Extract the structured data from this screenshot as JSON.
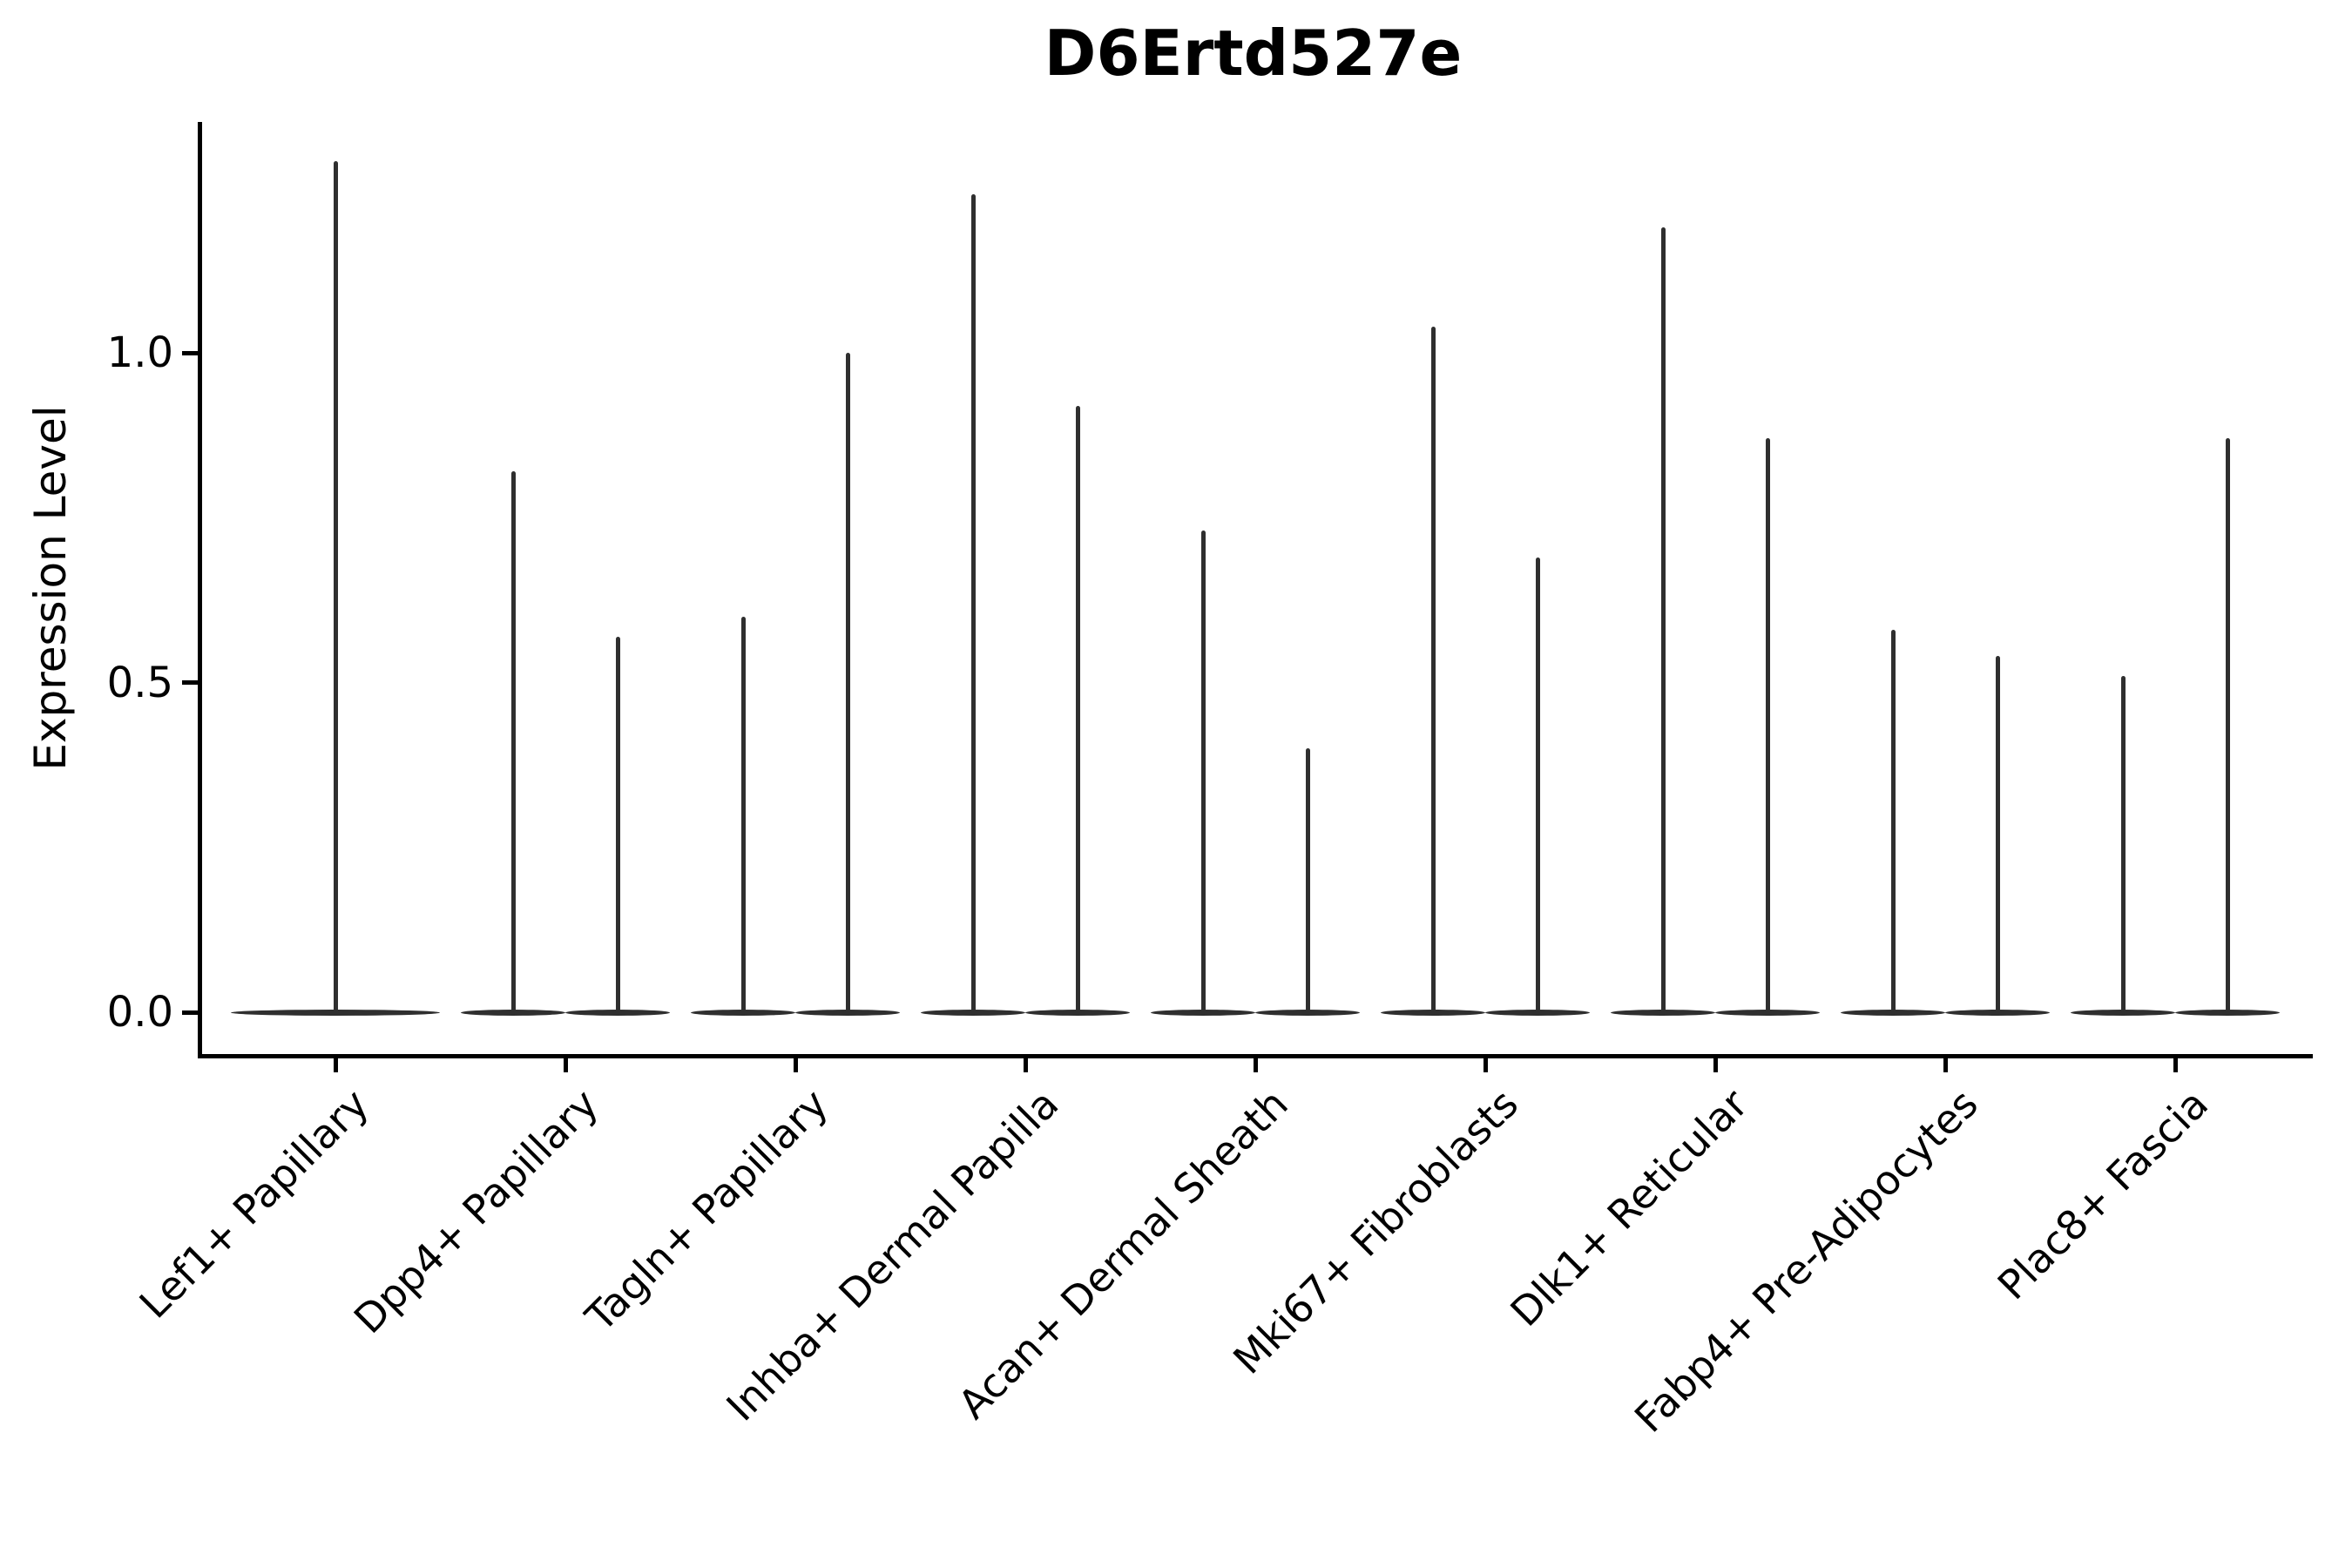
{
  "chart_data": {
    "type": "violin",
    "title": "D6Ertd527e",
    "xlabel": "",
    "ylabel": "Expression Level",
    "ylim": [
      -0.06,
      1.35
    ],
    "yticks": [
      0.0,
      0.5,
      1.0
    ],
    "ytick_labels": [
      "0.0",
      "0.5",
      "1.0"
    ],
    "grid": false,
    "legend": false,
    "baseline_value": 0.0,
    "categories": [
      "Lef1+ Papillary",
      "Dpp4+ Papillary",
      "Tagln+ Papillary",
      "Inhba+ Dermal Papilla",
      "Acan+ Dermal Sheath",
      "Mki67+ Fibroblasts",
      "Dlk1+ Reticular",
      "Fabp4+ Pre-Adipocytes",
      "Plac8+ Fascia"
    ],
    "groups": [
      {
        "label": "Lef1+ Papillary",
        "violin_max": [
          1.29
        ]
      },
      {
        "label": "Dpp4+ Papillary",
        "violin_max": [
          0.82,
          0.57
        ]
      },
      {
        "label": "Tagln+ Papillary",
        "violin_max": [
          0.6,
          1.0
        ]
      },
      {
        "label": "Inhba+ Dermal Papilla",
        "violin_max": [
          1.24,
          0.92
        ]
      },
      {
        "label": "Acan+ Dermal Sheath",
        "violin_max": [
          0.73,
          0.4
        ]
      },
      {
        "label": "Mki67+ Fibroblasts",
        "violin_max": [
          1.04,
          0.69
        ]
      },
      {
        "label": "Dlk1+ Reticular",
        "violin_max": [
          1.19,
          0.87
        ]
      },
      {
        "label": "Fabp4+ Pre-Adipocytes",
        "violin_max": [
          0.58,
          0.54
        ]
      },
      {
        "label": "Plac8+ Fascia",
        "violin_max": [
          0.51,
          0.87
        ]
      }
    ],
    "colors": {
      "violin": "#2f2f2f",
      "axis": "#000000",
      "text": "#000000",
      "background": "#ffffff"
    }
  }
}
